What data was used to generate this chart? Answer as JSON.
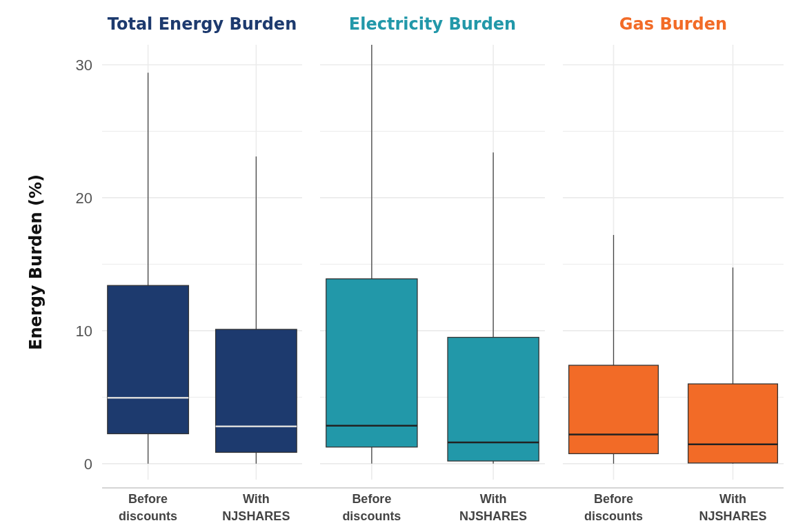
{
  "chart_data": [
    {
      "type": "box",
      "title": "Total Energy Burden",
      "ylabel": "Energy Burden (%)",
      "categories": [
        "Before\ndiscounts",
        "With\nNJSHARES"
      ],
      "ylim": [
        -1.2,
        31.5
      ],
      "yticks": [
        0,
        {
          "value": 5,
          "label": null
        },
        10,
        {
          "value": 15,
          "label": null
        },
        20,
        {
          "value": 25,
          "label": null
        },
        30
      ],
      "grid": true,
      "series": [
        {
          "color": "#1d3a6e",
          "boxes": [
            {
              "low": 0,
              "q1": 2.25,
              "median": 4.95,
              "q3": 13.4,
              "high": 29.4
            },
            {
              "low": 0,
              "q1": 0.85,
              "median": 2.8,
              "q3": 10.1,
              "high": 23.1
            }
          ]
        }
      ]
    },
    {
      "type": "box",
      "title": "Electricity Burden",
      "categories": [
        "Before\ndiscounts",
        "With\nNJSHARES"
      ],
      "ylim": [
        -1.2,
        31.5
      ],
      "yticks": [
        0,
        {
          "value": 5,
          "label": null
        },
        10,
        {
          "value": 15,
          "label": null
        },
        20,
        {
          "value": 25,
          "label": null
        },
        30
      ],
      "grid": true,
      "tick_labels": "x",
      "series": [
        {
          "color": "#2298a9",
          "boxes": [
            {
              "low": 0,
              "q1": 1.25,
              "median": 2.85,
              "q3": 13.9,
              "high": 31.5
            },
            {
              "low": 0,
              "q1": 0.2,
              "median": 1.6,
              "q3": 9.5,
              "high": 23.4
            }
          ]
        }
      ]
    },
    {
      "type": "box",
      "title": "Gas Burden",
      "categories": [
        "Before\ndiscounts",
        "With\nNJSHARES"
      ],
      "ylim": [
        -1.2,
        31.5
      ],
      "yticks": [
        0,
        {
          "value": 5,
          "label": null
        },
        10,
        {
          "value": 15,
          "label": null
        },
        20,
        {
          "value": 25,
          "label": null
        },
        30
      ],
      "grid": true,
      "tick_labels": "x",
      "series": [
        {
          "color": "#f26b27",
          "boxes": [
            {
              "low": 0,
              "q1": 0.75,
              "median": 2.2,
              "q3": 7.4,
              "high": 17.2
            },
            {
              "low": 0,
              "q1": 0.05,
              "median": 1.45,
              "q3": 6.0,
              "high": 14.75
            }
          ]
        }
      ]
    }
  ]
}
